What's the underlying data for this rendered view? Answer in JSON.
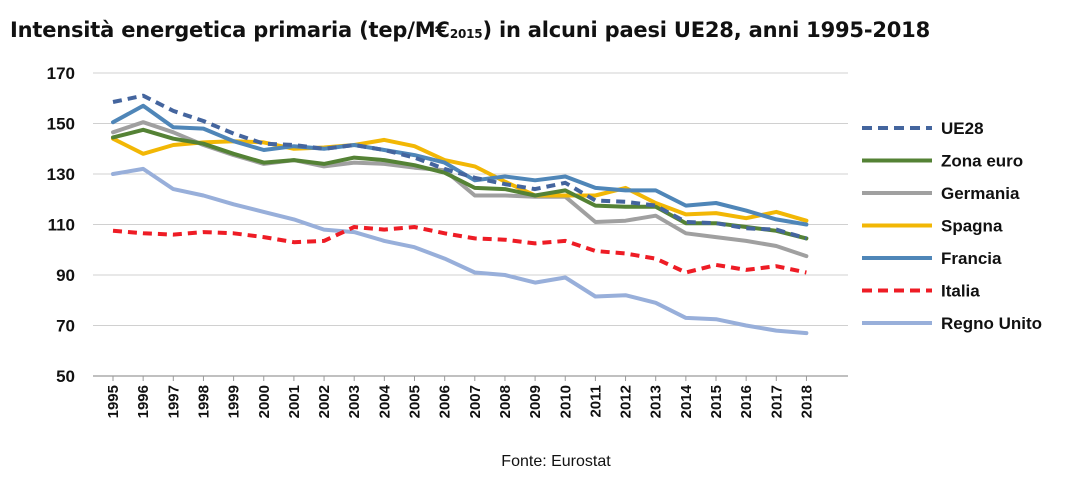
{
  "chart_data": {
    "type": "line",
    "title_main": "Intensità energetica primaria (tep/M€",
    "title_sub": "2015",
    "title_rest": ") in alcuni paesi UE28, anni 1995-2018",
    "source": "Fonte: Eurostat",
    "categories": [
      "1995",
      "1996",
      "1997",
      "1998",
      "1999",
      "2000",
      "2001",
      "2002",
      "2003",
      "2004",
      "2005",
      "2006",
      "2007",
      "2008",
      "2009",
      "2010",
      "2011",
      "2012",
      "2013",
      "2014",
      "2015",
      "2016",
      "2017",
      "2018"
    ],
    "ylim": [
      50,
      170
    ],
    "yticks": [
      50,
      70,
      90,
      110,
      130,
      150,
      170
    ],
    "grid": true,
    "legend_position": "right",
    "series": [
      {
        "name": "UE28",
        "color": "#44659E",
        "style": "dashed",
        "values": [
          158.5,
          161,
          155,
          151,
          146,
          142,
          141.5,
          140,
          141.5,
          139.5,
          136.5,
          132,
          128.5,
          126,
          124,
          126.5,
          119.5,
          119,
          117.5,
          111,
          110.5,
          108.5,
          108,
          104.5
        ]
      },
      {
        "name": "Zona euro",
        "color": "#548235",
        "style": "solid",
        "values": [
          144.5,
          147.5,
          144,
          142,
          138,
          134.5,
          135.5,
          134,
          136.5,
          135.5,
          133.5,
          130.5,
          124.5,
          124,
          121.5,
          123.5,
          117.5,
          117,
          117,
          110.5,
          110.5,
          109,
          107.5,
          104.5
        ]
      },
      {
        "name": "Germania",
        "color": "#A0A0A0",
        "style": "solid",
        "values": [
          146.5,
          150.5,
          146.5,
          141.5,
          137.5,
          134,
          135.5,
          133,
          134.5,
          134,
          132.5,
          131.5,
          121.5,
          121.5,
          121,
          121,
          111,
          111.5,
          113.5,
          106.5,
          105,
          103.5,
          101.5,
          97.5
        ]
      },
      {
        "name": "Spagna",
        "color": "#F2B705",
        "style": "solid",
        "values": [
          144,
          138,
          141.5,
          142.5,
          143,
          142.5,
          140,
          140.5,
          141.5,
          143.5,
          141,
          135.5,
          133,
          127,
          121.5,
          121.5,
          121.5,
          124.5,
          118.5,
          114,
          114.5,
          112.5,
          115,
          111.5
        ]
      },
      {
        "name": "Francia",
        "color": "#4F86B8",
        "style": "solid",
        "values": [
          150.5,
          157,
          148.5,
          148,
          143,
          139.5,
          141,
          140,
          141.5,
          139.5,
          137.5,
          134.5,
          127.5,
          129,
          127.5,
          129,
          124.5,
          123.5,
          123.5,
          117.5,
          118.5,
          115.5,
          112,
          110
        ]
      },
      {
        "name": "Italia",
        "color": "#EE1C25",
        "style": "dashed",
        "values": [
          107.5,
          106.5,
          106,
          107,
          106.5,
          105,
          103,
          103.5,
          109,
          108,
          109,
          106.5,
          104.5,
          104,
          102.5,
          103.5,
          99.5,
          98.5,
          96.5,
          91,
          94,
          92,
          93.5,
          91
        ]
      },
      {
        "name": "Regno Unito",
        "color": "#98AFDA",
        "style": "solid",
        "values": [
          130,
          132,
          124,
          121.5,
          118,
          115,
          112,
          108,
          107,
          103.5,
          101,
          96.5,
          91,
          90,
          87,
          89,
          81.5,
          82,
          79,
          73,
          72.5,
          70,
          68,
          67
        ]
      }
    ]
  }
}
